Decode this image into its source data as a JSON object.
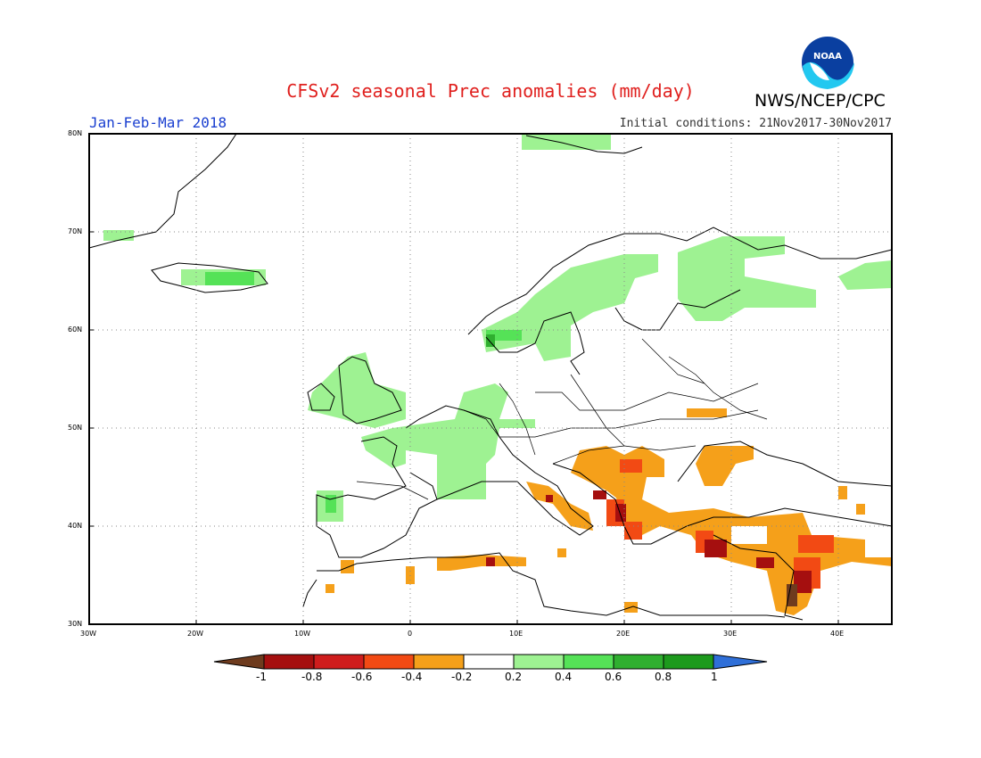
{
  "header": {
    "title": "CFSv2 seasonal Prec anomalies (mm/day)",
    "period": "Jan-Feb-Mar 2018",
    "initial_conditions": "Initial conditions: 21Nov2017-30Nov2017",
    "agency": "NWS/NCEP/CPC",
    "logo_text": "NOAA"
  },
  "map": {
    "lon_range": [
      -30,
      45
    ],
    "lat_range": [
      30,
      80
    ],
    "lat_ticks": [
      "80N",
      "70N",
      "60N",
      "50N",
      "40N",
      "30N"
    ],
    "lon_ticks": [
      "30W",
      "20W",
      "10W",
      "0",
      "10E",
      "20E",
      "30E",
      "40E"
    ],
    "anomaly_regions": [
      {
        "area": "Greenland east coast",
        "category": "0.2 to 0.4"
      },
      {
        "area": "Iceland",
        "category": "0.4 to 0.6"
      },
      {
        "area": "Svalbard",
        "category": "0.2 to 0.4"
      },
      {
        "area": "Scandinavia",
        "category": "0.2 to 0.4"
      },
      {
        "area": "Southern Norway",
        "category": "0.4 to 0.6"
      },
      {
        "area": "Finland / NW Russia",
        "category": "0.2 to 0.4"
      },
      {
        "area": "British Isles",
        "category": "0.2 to 0.4"
      },
      {
        "area": "France / Benelux / Germany",
        "category": "0.2 to 0.4"
      },
      {
        "area": "NW Iberia",
        "category": "0.4 to 0.6"
      },
      {
        "area": "Balkans",
        "category": "-0.4 to -0.2"
      },
      {
        "area": "Italy / Adriatic",
        "category": "-0.4 to -0.2"
      },
      {
        "area": "Ukraine / Moldova",
        "category": "-0.4 to -0.2"
      },
      {
        "area": "Greece / Turkey",
        "category": "-0.4 to -0.2"
      },
      {
        "area": "Eastern Mediterranean",
        "category": "-0.8 to -0.6"
      },
      {
        "area": "Levant",
        "category": "< -1"
      },
      {
        "area": "North Africa coast",
        "category": "-0.4 to -0.2"
      }
    ]
  },
  "colorbar": {
    "labels": [
      "-1",
      "-0.8",
      "-0.6",
      "-0.4",
      "-0.2",
      "0.2",
      "0.4",
      "0.6",
      "0.8",
      "1"
    ],
    "colors": [
      "#6e3b1e",
      "#a50f0f",
      "#cf1d1d",
      "#f24a14",
      "#f5a01a",
      "#ffffff",
      "#9ef292",
      "#55e257",
      "#2faf2f",
      "#1d9a1d",
      "#2f6fd8"
    ]
  }
}
